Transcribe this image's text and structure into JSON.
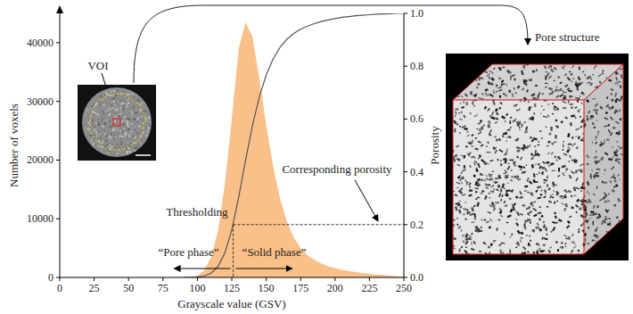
{
  "chart_data": {
    "type": "area",
    "x_label": "Grayscale value (GSV)",
    "y_label": "Number of voxels",
    "y2_label": "Porosity",
    "x": [
      90,
      95,
      100,
      105,
      110,
      115,
      120,
      125,
      130,
      135,
      140,
      145,
      150,
      155,
      160,
      165,
      170,
      175,
      180,
      185,
      190,
      195,
      200,
      205,
      210,
      215,
      220,
      225,
      230,
      235,
      240,
      245,
      250
    ],
    "series": [
      {
        "type": "area",
        "color": "#f9c08a",
        "values": [
          0,
          50,
          300,
          1200,
          3500,
          8000,
          16000,
          27000,
          39000,
          43500,
          41000,
          34000,
          26000,
          19000,
          13500,
          9500,
          6800,
          5000,
          3800,
          3000,
          2400,
          1900,
          1600,
          1300,
          1100,
          900,
          750,
          600,
          500,
          400,
          300,
          200,
          100
        ]
      },
      {
        "type": "line",
        "color": "#555555",
        "axis": "y2",
        "values": [
          0,
          0.0002,
          0.001,
          0.005,
          0.016,
          0.042,
          0.093,
          0.18,
          0.304,
          0.444,
          0.575,
          0.684,
          0.767,
          0.828,
          0.871,
          0.902,
          0.924,
          0.94,
          0.952,
          0.961,
          0.969,
          0.975,
          0.98,
          0.985,
          0.988,
          0.991,
          0.993,
          0.995,
          0.997,
          0.998,
          0.999,
          1.0,
          1.0
        ]
      }
    ],
    "xlim": [
      0,
      250
    ],
    "xticks": [
      0,
      25,
      50,
      75,
      100,
      125,
      150,
      175,
      200,
      225,
      250
    ],
    "ylim": [
      0,
      45000
    ],
    "yticks": [
      0,
      10000,
      20000,
      30000,
      40000
    ],
    "y2lim": [
      0,
      1
    ],
    "y2ticks": [
      {
        "value": 0,
        "label": "0.0"
      },
      {
        "value": 0.2,
        "label": "0.2"
      },
      {
        "value": 0.4,
        "label": "0.4"
      },
      {
        "value": 0.6,
        "label": "0.6"
      },
      {
        "value": 0.8,
        "label": "0.8"
      },
      {
        "value": 1,
        "label": "1.0"
      }
    ],
    "threshold": {
      "x": 126,
      "porosity": 0.2,
      "label": "Thresholding"
    },
    "annotations": {
      "pore_phase": "“Pore phase”",
      "solid_phase": "“Solid phase”",
      "corresponding_porosity": "Corresponding porosity",
      "voi": "VOI",
      "pore_structure": "Pore structure"
    }
  }
}
